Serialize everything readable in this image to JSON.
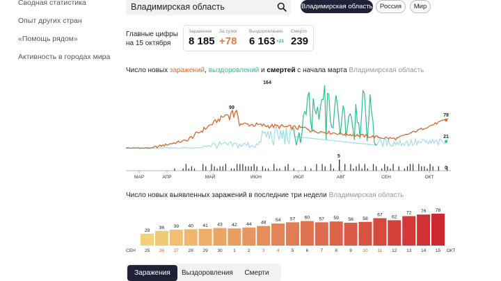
{
  "sidebar": {
    "items": [
      {
        "label": "Сводная статистика"
      },
      {
        "label": "Опыт других стран"
      },
      {
        "label": "«Помощь рядом»"
      },
      {
        "label": "Активность в городах мира"
      }
    ]
  },
  "search": {
    "value": "Владимирская область"
  },
  "region_buttons": {
    "region": "Владимирская область",
    "russia": "Россия",
    "world": "Мир"
  },
  "key_figures": {
    "title_line1": "Главные цифры",
    "title_line2": "на 15 октября",
    "infected_label": "Заражения",
    "infected_value": "8 185",
    "daily_label": "За сутки",
    "daily_value": "+78",
    "recovered_label": "Выздоровления",
    "recovered_value": "6 163",
    "recovered_delta": "+21",
    "deaths_label": "Смерти",
    "deaths_value": "239"
  },
  "chart1_title": {
    "prefix": "Число новых ",
    "infections": "заражений",
    "sep1": ", ",
    "recoveries": "выздоровлений",
    "sep2": " и ",
    "deaths": "смертей",
    "suffix": " с начала марта",
    "region": "Владимирская область"
  },
  "chart2_title": {
    "text": "Число новых выявленных заражений в последние три недели",
    "region": "Владимирская область"
  },
  "tabs": {
    "cases": "Заражения",
    "recovered": "Выздоровления",
    "deaths": "Смерти"
  },
  "colors": {
    "infections": "#d9662b",
    "recoveries": "#2bbf8a",
    "recoveries_light": "#9fdde8",
    "deaths": "#2e2f45",
    "weekend": "#e05a2b",
    "active_bg": "#1f2236"
  },
  "chart_data": [
    {
      "type": "line",
      "months": [
        "МАР",
        "АПР",
        "МАЙ",
        "ИЮН",
        "ИЮЛ",
        "АВГ",
        "СЕН",
        "ОКТ"
      ],
      "peak_labels": [
        {
          "series": "infections",
          "value": 99
        },
        {
          "series": "recoveries",
          "value": 164
        },
        {
          "series": "deaths",
          "value": 5
        },
        {
          "series": "infections_last",
          "value": 78
        },
        {
          "series": "recoveries_last",
          "value": 21
        },
        {
          "series": "deaths_last",
          "value": 0
        }
      ]
    },
    {
      "type": "bar",
      "categories": [
        "25",
        "26",
        "27",
        "28",
        "29",
        "30",
        "1",
        "2",
        "3",
        "4",
        "5",
        "6",
        "7",
        "8",
        "9",
        "10",
        "11",
        "12",
        "13",
        "14",
        "15"
      ],
      "weekend_categories": [
        "26",
        "27",
        "3",
        "4",
        "10",
        "11"
      ],
      "values": [
        29,
        36,
        39,
        40,
        41,
        43,
        42,
        44,
        48,
        54,
        57,
        60,
        57,
        59,
        56,
        58,
        67,
        62,
        72,
        76,
        78
      ],
      "start_label": "СЕН",
      "end_label": "ОКТ"
    }
  ]
}
